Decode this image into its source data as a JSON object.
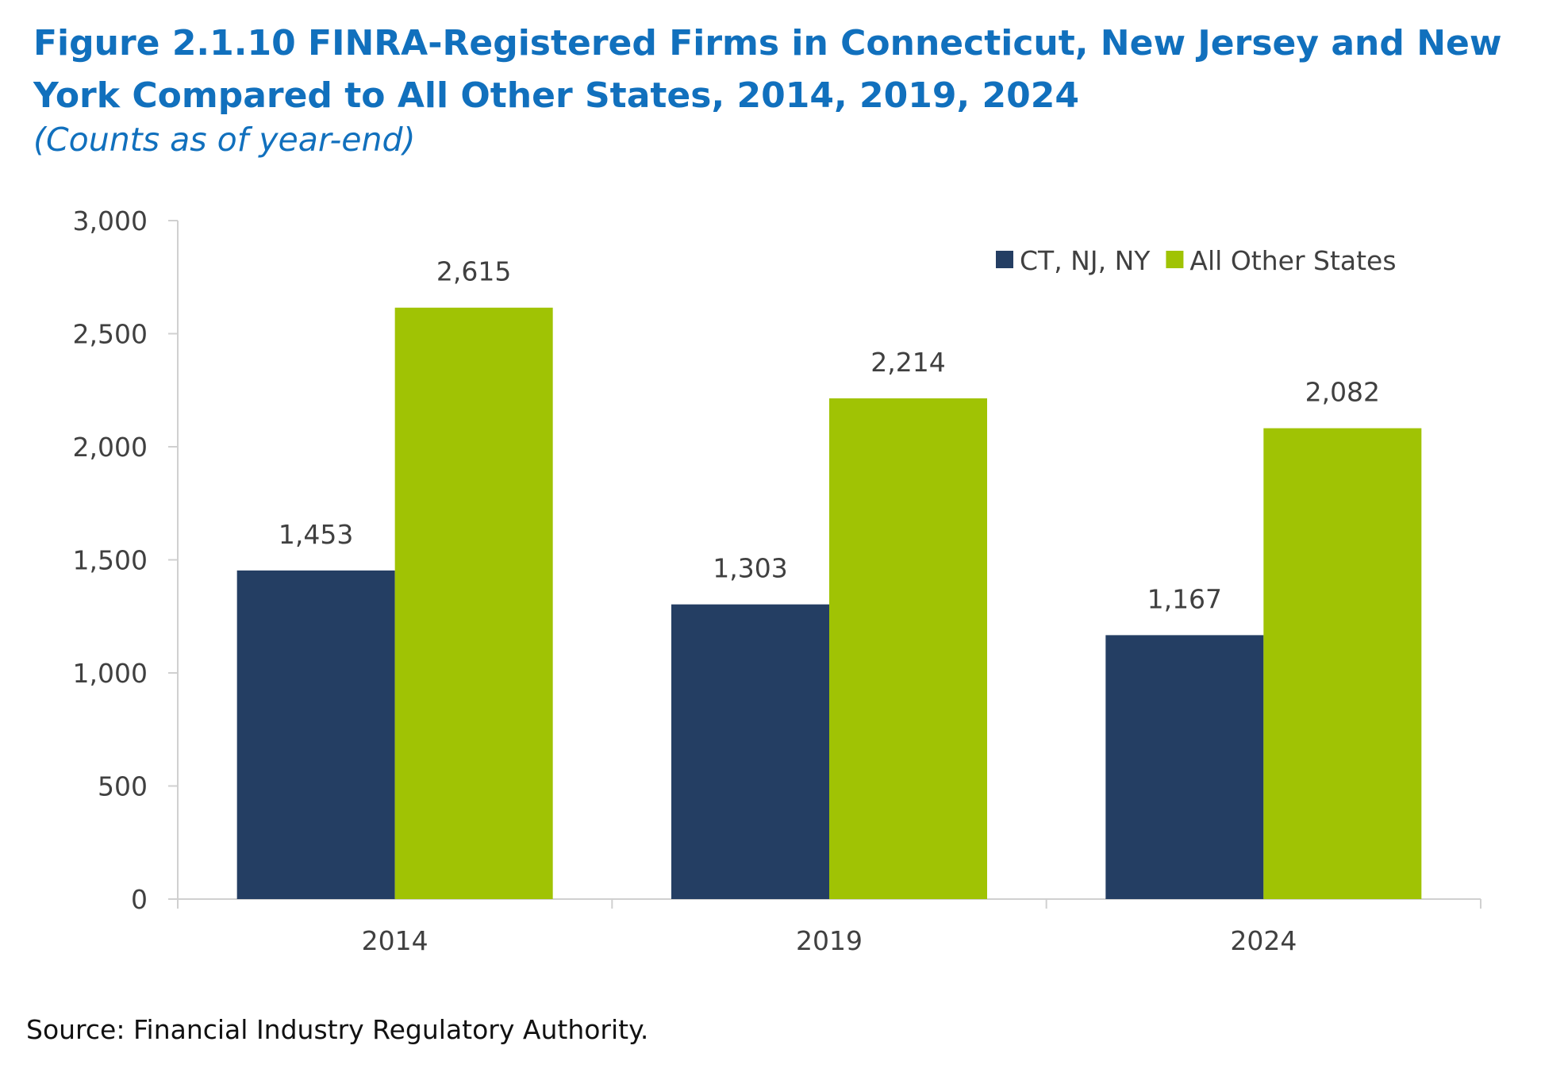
{
  "figure": {
    "title": "Figure 2.1.10 FINRA-Registered Firms in Connecticut, New Jersey and New York Compared to All Other States, 2014, 2019, 2024",
    "subtitle": "(Counts as of year-end)",
    "source": "Source: Financial Industry Regulatory Authority."
  },
  "chart_data": {
    "type": "bar",
    "title": "Figure 2.1.10 FINRA-Registered Firms in Connecticut, New Jersey and New York Compared to All Other States, 2014, 2019, 2024",
    "subtitle": "(Counts as of year-end)",
    "categories": [
      "2014",
      "2019",
      "2024"
    ],
    "series": [
      {
        "name": "CT, NJ, NY",
        "values": [
          1453,
          1303,
          1167
        ],
        "labels": [
          "1,453",
          "1,303",
          "1,167"
        ],
        "color": "#243e63"
      },
      {
        "name": "All Other States",
        "values": [
          2615,
          2214,
          2082
        ],
        "labels": [
          "2,615",
          "2,214",
          "2,082"
        ],
        "color": "#a0c304"
      }
    ],
    "ylim": [
      0,
      3000
    ],
    "yticks": [
      0,
      500,
      1000,
      1500,
      2000,
      2500,
      3000
    ],
    "ytick_labels": [
      "0",
      "500",
      "1,000",
      "1,500",
      "2,000",
      "2,500",
      "3,000"
    ],
    "xlabel": "",
    "ylabel": "",
    "grid": false,
    "legend": "top-right",
    "axis_color": "#d0d0d0",
    "text_color": "#404040"
  }
}
